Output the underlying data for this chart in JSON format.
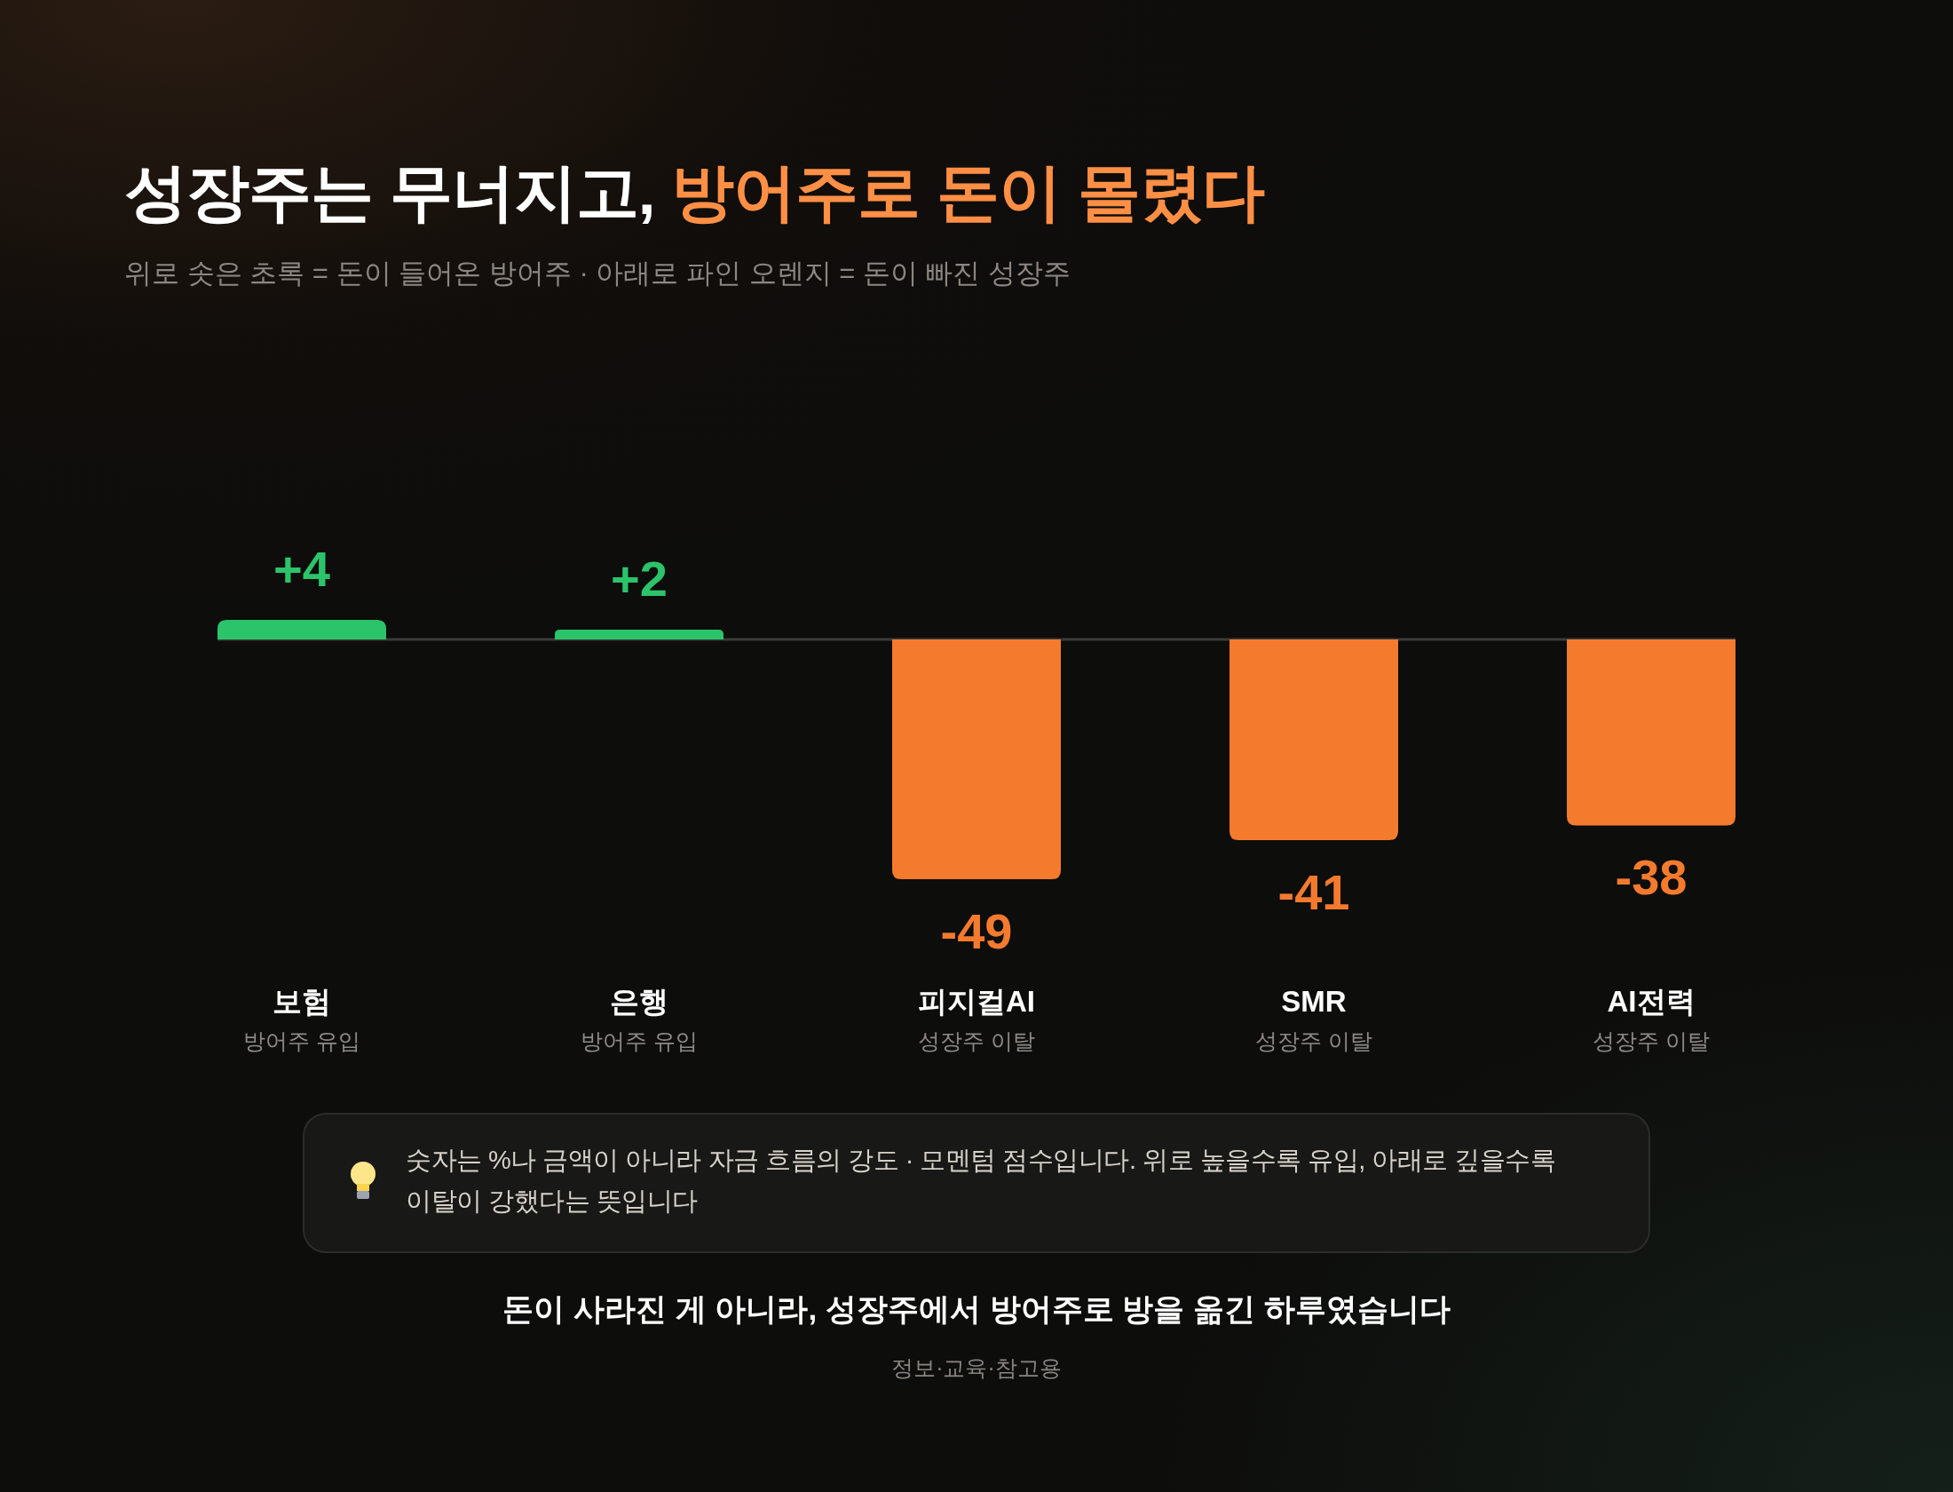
{
  "chart_data": {
    "type": "bar",
    "title": "성장주는 무너지고, 방어주로 돈이 몰렸다",
    "subtitle": "위로 솟은 초록 = 돈이 들어온 방어주 · 아래로 파인 오렌지 = 돈이 빠진 성장주",
    "categories": [
      "보험\n방어주 유입",
      "은행\n방어주 유입",
      "피지컬AI\n성장주 이탈",
      "SMR\n성장주 이탈",
      "AI전력\n성장주 이탈"
    ],
    "values": [
      4,
      2,
      -49,
      -41,
      -38
    ],
    "colors": [
      "#2cc46a",
      "#2cc46a",
      "#f47a2e",
      "#f47a2e",
      "#f47a2e"
    ],
    "value_labels": [
      "+4",
      "+2",
      "-49",
      "-41",
      "-38"
    ],
    "annotations": [
      "숫자는 %나 금액이 아니라 자금 흐름의 강도 · 모멘텀 점수입니다. 위로 높을수록 유입, 아래로 깊을수록 이탈이 강했다는 뜻입니다",
      "돈이 사라진 게 아니라, 성장주에서 방어주로 방을 옮긴 하루였습니다",
      "정보·교육·참고용"
    ]
  }
}
